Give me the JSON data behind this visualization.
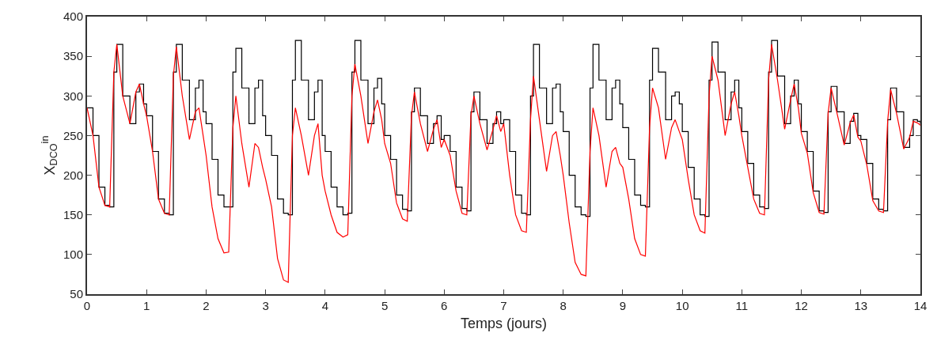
{
  "chart_data": {
    "type": "line",
    "xlabel": "Temps (jours)",
    "ylabel": "X$_{DCO}$$^{in}$",
    "xlim": [
      0,
      14
    ],
    "xticks": [
      0,
      1,
      2,
      3,
      4,
      5,
      6,
      7,
      8,
      9,
      10,
      11,
      12,
      13,
      14
    ],
    "ylim": [
      50,
      400
    ],
    "yticks": [
      50,
      100,
      150,
      200,
      250,
      300,
      350,
      400
    ],
    "x": [
      0,
      0.1,
      0.2,
      0.3,
      0.38,
      0.45,
      0.5,
      0.6,
      0.72,
      0.82,
      0.88,
      0.95,
      1,
      1.1,
      1.2,
      1.3,
      1.38,
      1.45,
      1.5,
      1.6,
      1.72,
      1.82,
      1.88,
      1.95,
      2,
      2.1,
      2.2,
      2.3,
      2.38,
      2.45,
      2.5,
      2.6,
      2.72,
      2.82,
      2.88,
      2.95,
      3,
      3.1,
      3.2,
      3.3,
      3.38,
      3.45,
      3.5,
      3.6,
      3.72,
      3.82,
      3.88,
      3.95,
      4,
      4.1,
      4.2,
      4.3,
      4.38,
      4.45,
      4.5,
      4.6,
      4.72,
      4.82,
      4.88,
      4.95,
      5,
      5.1,
      5.2,
      5.3,
      5.38,
      5.45,
      5.5,
      5.6,
      5.72,
      5.82,
      5.88,
      5.95,
      6,
      6.1,
      6.2,
      6.3,
      6.38,
      6.45,
      6.5,
      6.6,
      6.72,
      6.82,
      6.88,
      6.95,
      7,
      7.1,
      7.2,
      7.3,
      7.38,
      7.45,
      7.5,
      7.6,
      7.72,
      7.82,
      7.88,
      7.95,
      8,
      8.1,
      8.2,
      8.3,
      8.38,
      8.45,
      8.5,
      8.6,
      8.72,
      8.82,
      8.88,
      8.95,
      9,
      9.1,
      9.2,
      9.3,
      9.38,
      9.45,
      9.5,
      9.6,
      9.72,
      9.82,
      9.88,
      9.95,
      10,
      10.1,
      10.2,
      10.3,
      10.38,
      10.45,
      10.5,
      10.6,
      10.72,
      10.82,
      10.88,
      10.95,
      11,
      11.1,
      11.2,
      11.3,
      11.38,
      11.45,
      11.5,
      11.6,
      11.72,
      11.82,
      11.88,
      11.95,
      12,
      12.1,
      12.2,
      12.3,
      12.38,
      12.45,
      12.5,
      12.6,
      12.72,
      12.82,
      12.88,
      12.95,
      13,
      13.1,
      13.2,
      13.3,
      13.38,
      13.45,
      13.5,
      13.6,
      13.72,
      13.82,
      13.88,
      13.95,
      14
    ],
    "series": [
      {
        "type": "step",
        "color": "#000000",
        "values": [
          285,
          250,
          185,
          162,
          160,
          330,
          365,
          300,
          265,
          305,
          315,
          290,
          275,
          230,
          170,
          152,
          150,
          330,
          365,
          320,
          270,
          310,
          320,
          280,
          265,
          220,
          175,
          160,
          160,
          330,
          360,
          310,
          265,
          310,
          320,
          275,
          250,
          225,
          170,
          152,
          150,
          320,
          370,
          320,
          270,
          305,
          320,
          250,
          230,
          185,
          160,
          150,
          152,
          330,
          370,
          320,
          265,
          310,
          322,
          290,
          250,
          220,
          175,
          157,
          155,
          280,
          310,
          275,
          240,
          265,
          275,
          245,
          250,
          230,
          185,
          158,
          155,
          280,
          305,
          270,
          240,
          265,
          280,
          265,
          270,
          230,
          175,
          152,
          150,
          300,
          365,
          310,
          265,
          310,
          315,
          280,
          255,
          200,
          160,
          150,
          148,
          310,
          365,
          320,
          270,
          310,
          320,
          290,
          260,
          220,
          175,
          162,
          160,
          320,
          360,
          330,
          270,
          300,
          305,
          290,
          255,
          210,
          170,
          150,
          148,
          320,
          368,
          330,
          270,
          305,
          320,
          285,
          255,
          215,
          175,
          160,
          158,
          330,
          370,
          325,
          265,
          300,
          320,
          290,
          255,
          230,
          180,
          155,
          153,
          280,
          312,
          280,
          240,
          268,
          278,
          250,
          245,
          215,
          170,
          157,
          155,
          270,
          310,
          280,
          235,
          250,
          270,
          268,
          265
        ]
      },
      {
        "color": "#ff0000",
        "values": [
          285,
          250,
          185,
          162,
          160,
          330,
          365,
          300,
          265,
          305,
          315,
          290,
          275,
          230,
          170,
          152,
          150,
          325,
          362,
          300,
          245,
          280,
          285,
          250,
          225,
          160,
          120,
          102,
          103,
          260,
          300,
          240,
          185,
          240,
          235,
          210,
          195,
          160,
          95,
          68,
          65,
          250,
          285,
          250,
          200,
          250,
          265,
          200,
          180,
          150,
          128,
          122,
          125,
          300,
          340,
          300,
          240,
          280,
          295,
          270,
          240,
          215,
          165,
          145,
          142,
          275,
          305,
          265,
          230,
          258,
          270,
          235,
          245,
          225,
          180,
          152,
          150,
          275,
          300,
          265,
          232,
          258,
          275,
          255,
          265,
          200,
          150,
          130,
          128,
          270,
          325,
          270,
          205,
          250,
          255,
          225,
          200,
          140,
          90,
          75,
          73,
          230,
          285,
          250,
          185,
          230,
          235,
          215,
          210,
          170,
          120,
          100,
          98,
          260,
          310,
          285,
          220,
          260,
          270,
          255,
          245,
          195,
          150,
          130,
          127,
          300,
          350,
          320,
          250,
          290,
          305,
          275,
          250,
          210,
          170,
          152,
          150,
          320,
          365,
          320,
          258,
          295,
          315,
          285,
          253,
          228,
          178,
          153,
          151,
          278,
          310,
          278,
          238,
          266,
          276,
          248,
          243,
          213,
          168,
          155,
          153,
          268,
          308,
          278,
          233,
          248,
          268,
          266,
          263
        ]
      }
    ]
  }
}
